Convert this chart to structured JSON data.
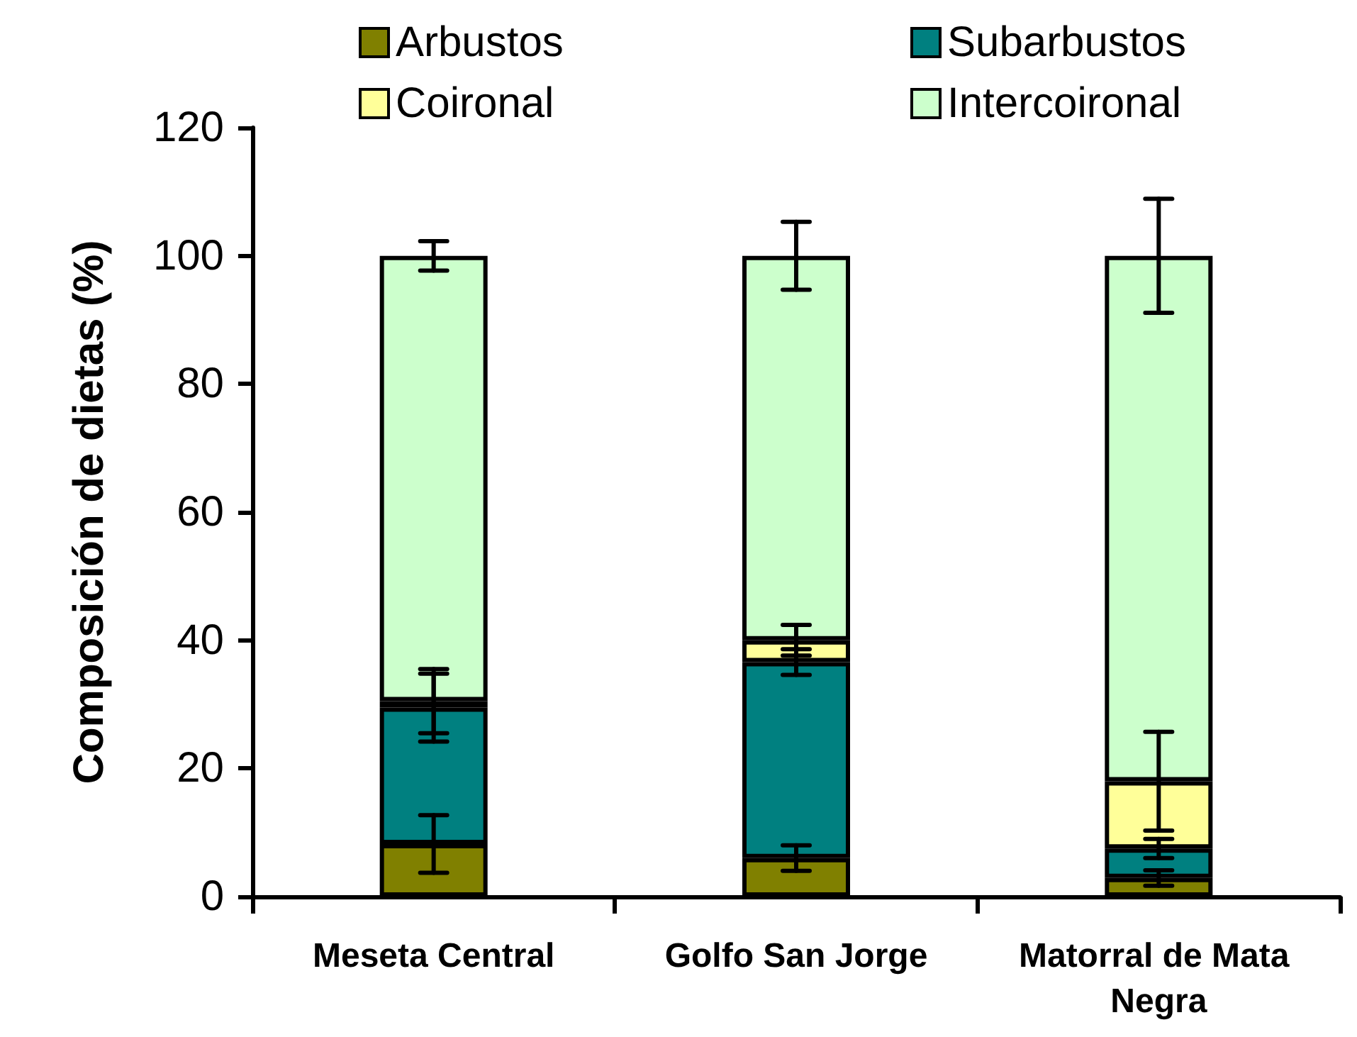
{
  "chart_data": {
    "type": "bar",
    "stacked": true,
    "ylabel": "Composición de dietas (%)",
    "categories": [
      "Meseta Central",
      "Golfo San Jorge",
      "Matorral de Mata Negra"
    ],
    "series": [
      {
        "name": "Arbustos",
        "color": "#808000",
        "values": [
          8.2,
          6,
          2.9
        ],
        "errors": [
          4.5,
          2,
          1.2
        ]
      },
      {
        "name": "Subarbustos",
        "color": "#008080",
        "values": [
          21.3,
          30.6,
          4.6
        ],
        "errors": [
          5.3,
          2,
          1.5
        ]
      },
      {
        "name": "Coironal",
        "color": "#ffff99",
        "values": [
          1,
          3.4,
          10.5
        ],
        "errors": [
          5,
          2.4,
          7.7
        ]
      },
      {
        "name": "Intercoironal",
        "color": "#ccffcc",
        "values": [
          69.5,
          60,
          82
        ],
        "errors": [
          2.3,
          5.3,
          8.9
        ]
      }
    ],
    "ylim": [
      0,
      120
    ],
    "yticks": [
      0,
      20,
      40,
      60,
      80,
      100,
      120
    ],
    "grid": false,
    "legend": "top"
  }
}
